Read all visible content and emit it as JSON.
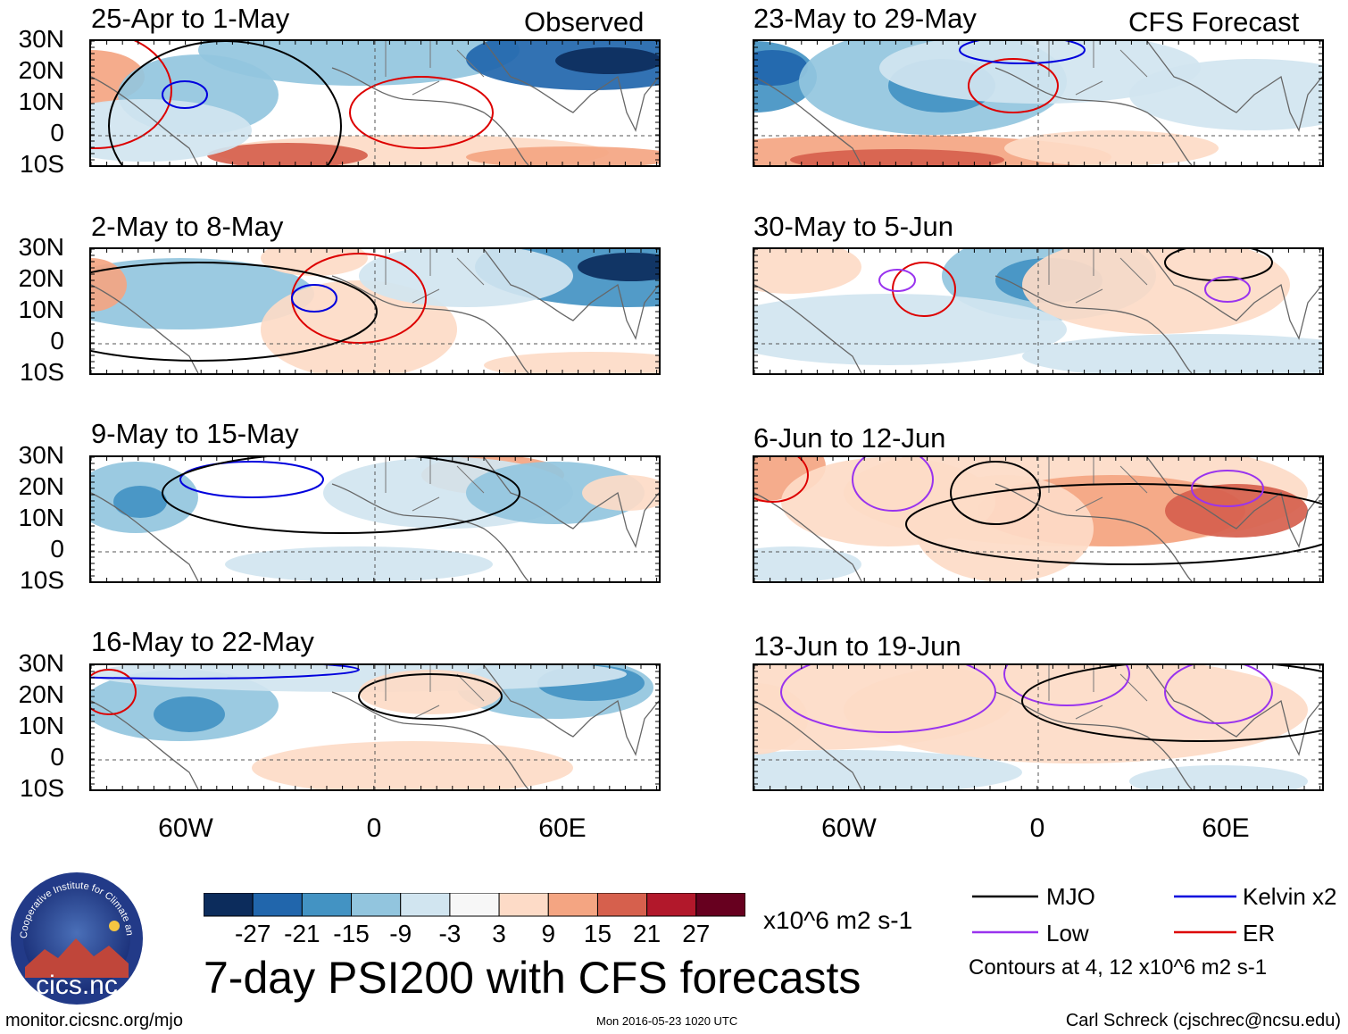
{
  "title": "7-day PSI200 with CFS forecasts",
  "observed_label": "Observed",
  "forecast_label": "CFS Forecast",
  "lat_labels": [
    "30N",
    "20N",
    "10N",
    "0",
    "10S"
  ],
  "lon_labels": [
    "60W",
    "0",
    "60E"
  ],
  "panels_left": [
    {
      "title": "25-Apr to 1-May"
    },
    {
      "title": "2-May to 8-May"
    },
    {
      "title": "9-May to 15-May"
    },
    {
      "title": "16-May to 22-May"
    }
  ],
  "panels_right": [
    {
      "title": "23-May to 29-May"
    },
    {
      "title": "30-May to 5-Jun"
    },
    {
      "title": "6-Jun to 12-Jun"
    },
    {
      "title": "13-Jun to 19-Jun"
    }
  ],
  "colorbar": {
    "labels": [
      "-27",
      "-21",
      "-15",
      "-9",
      "-3",
      "3",
      "9",
      "15",
      "21",
      "27"
    ],
    "colors": [
      "#0c2c5c",
      "#2166ac",
      "#4393c3",
      "#92c5de",
      "#d1e5f0",
      "#f7f7f7",
      "#fddbc7",
      "#f4a582",
      "#d6604d",
      "#b2182b",
      "#67001f"
    ],
    "units": "x10^6 m2 s-1"
  },
  "legend": {
    "items": [
      {
        "label": "MJO",
        "color": "#000000"
      },
      {
        "label": "Kelvin x2",
        "color": "#0000dd"
      },
      {
        "label": "Low",
        "color": "#9933ee"
      },
      {
        "label": "ER",
        "color": "#dd0000"
      }
    ],
    "note": "Contours at 4, 12 x10^6 m2 s-1"
  },
  "logo_text": "cics.nc",
  "logo_ring_text": "Cooperative Institute for Climate and Satellites",
  "footer": {
    "left": "monitor.cicsnc.org/mjo",
    "mid": "Mon 2016-05-23 1020 UTC",
    "right": "Carl Schreck (cjschrec@ncsu.edu)"
  }
}
